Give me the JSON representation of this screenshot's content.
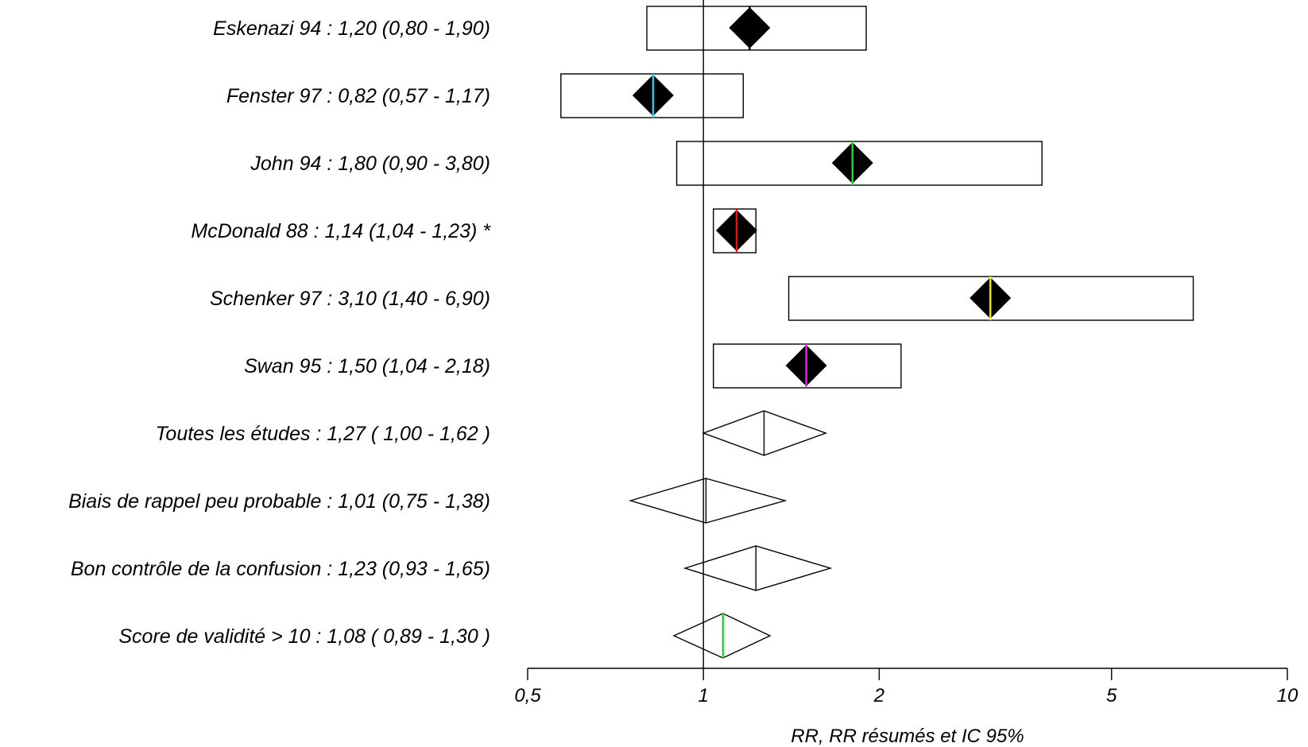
{
  "chart_data": {
    "type": "forest",
    "xscale": "log",
    "xlim": [
      0.5,
      10
    ],
    "reference_value": 1,
    "xticks": [
      {
        "value": 0.5,
        "label": "0,5"
      },
      {
        "value": 1,
        "label": "1"
      },
      {
        "value": 2,
        "label": "2"
      },
      {
        "value": 5,
        "label": "5"
      },
      {
        "value": 10,
        "label": "10"
      }
    ],
    "xlabel": "RR, RR résumés et IC 95%",
    "studies": [
      {
        "label": "Eskenazi 94 : 1,20 (0,80 - 1,90)",
        "rr": 1.2,
        "lo": 0.8,
        "hi": 1.9,
        "line_color": "#000000"
      },
      {
        "label": "Fenster 97 : 0,82 (0,57 - 1,17)",
        "rr": 0.82,
        "lo": 0.57,
        "hi": 1.17,
        "line_color": "#22ccee"
      },
      {
        "label": "John 94 : 1,80 (0,90 - 3,80)",
        "rr": 1.8,
        "lo": 0.9,
        "hi": 3.8,
        "line_color": "#22dd22"
      },
      {
        "label": "McDonald 88 : 1,14 (1,04 - 1,23) *",
        "rr": 1.14,
        "lo": 1.04,
        "hi": 1.23,
        "line_color": "#ee1111"
      },
      {
        "label": "Schenker 97 : 3,10 (1,40 - 6,90)",
        "rr": 3.1,
        "lo": 1.4,
        "hi": 6.9,
        "line_color": "#eeee00"
      },
      {
        "label": "Swan 95 : 1,50 (1,04 - 2,18)",
        "rr": 1.5,
        "lo": 1.04,
        "hi": 2.18,
        "line_color": "#ee22ee"
      }
    ],
    "summaries": [
      {
        "label": "Toutes les études : 1,27 ( 1,00 - 1,62 )",
        "rr": 1.27,
        "lo": 1.0,
        "hi": 1.62,
        "line_color": "#000000"
      },
      {
        "label": "Biais de rappel peu probable : 1,01 (0,75 - 1,38)",
        "rr": 1.01,
        "lo": 0.75,
        "hi": 1.38,
        "line_color": "#000000"
      },
      {
        "label": "Bon contrôle de la confusion : 1,23 (0,93 - 1,65)",
        "rr": 1.23,
        "lo": 0.93,
        "hi": 1.65,
        "line_color": "#000000"
      },
      {
        "label": "Score de validité > 10 : 1,08 ( 0,89 - 1,30 )",
        "rr": 1.08,
        "lo": 0.89,
        "hi": 1.3,
        "line_color": "#22dd22"
      }
    ]
  }
}
